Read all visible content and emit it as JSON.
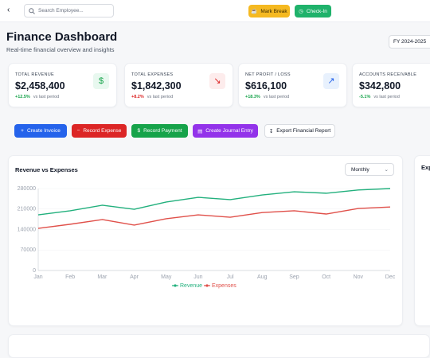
{
  "header": {
    "search_placeholder": "Search Employee...",
    "buttons": [
      "Mark Break",
      "Check-In"
    ]
  },
  "page": {
    "title": "Finance Dashboard",
    "subtitle": "Real-time financial overview and insights",
    "fiscal_year": "FY 2024-2025"
  },
  "kpis": [
    {
      "label": "TOTAL REVENUE",
      "value": "$2,458,400",
      "change": "+12.5%",
      "note": "vs last period"
    },
    {
      "label": "TOTAL EXPENSES",
      "value": "$1,842,300",
      "change": "+8.2%",
      "note": "vs last period"
    },
    {
      "label": "NET PROFIT / LOSS",
      "value": "$616,100",
      "change": "+18.3%",
      "note": "vs last period"
    },
    {
      "label": "ACCOUNTS RECEIVABLE",
      "value": "$342,800",
      "change": "-5.1%",
      "note": "vs last period"
    }
  ],
  "actions": [
    "Create Invoice",
    "Record Expense",
    "Record Payment",
    "Create Journal Entry",
    "Export Financial Report"
  ],
  "chart_data": {
    "type": "line",
    "title": "Revenue vs Expenses",
    "period": "Monthly",
    "categories": [
      "Jan",
      "Feb",
      "Mar",
      "Apr",
      "May",
      "Jun",
      "Jul",
      "Aug",
      "Sep",
      "Oct",
      "Nov",
      "Dec"
    ],
    "series": [
      {
        "name": "Revenue",
        "color": "#22b07d",
        "values": [
          190000,
          204000,
          223000,
          209000,
          234000,
          250000,
          242000,
          258000,
          269000,
          264000,
          275000,
          280000
        ]
      },
      {
        "name": "Expenses",
        "color": "#e0504a",
        "values": [
          144000,
          158000,
          174000,
          155000,
          177000,
          190000,
          182000,
          198000,
          204000,
          193000,
          212000,
          217000
        ]
      }
    ],
    "ylim": [
      0,
      280000
    ],
    "yticks": [
      0,
      70000,
      140000,
      210000,
      280000
    ],
    "grid": true
  },
  "side_panel": {
    "title": "Expense Breakdown"
  }
}
